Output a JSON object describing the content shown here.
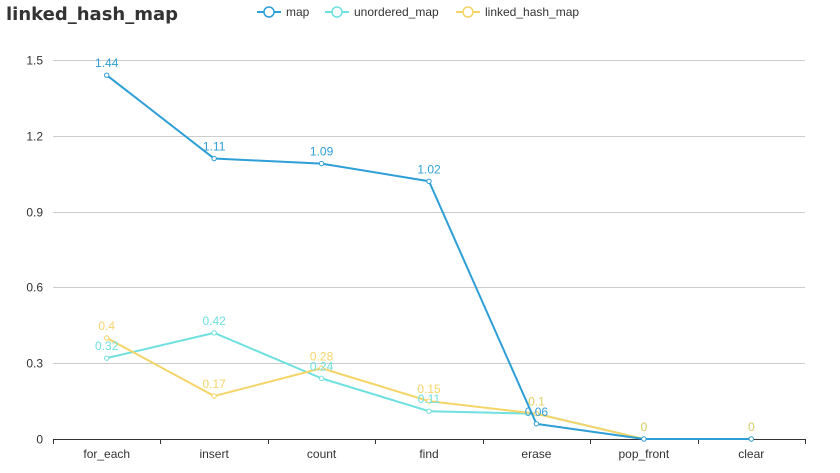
{
  "chart_data": {
    "type": "line",
    "title": "linked_hash_map",
    "xlabel": "",
    "ylabel": "",
    "categories": [
      "for_each",
      "insert",
      "count",
      "find",
      "erase",
      "pop_front",
      "clear"
    ],
    "ylim": [
      0,
      1.5
    ],
    "yticks": [
      0,
      0.3,
      0.6,
      0.9,
      1.2,
      1.5
    ],
    "ytick_labels": [
      "0",
      "0.3",
      "0.6",
      "0.9",
      "1.2",
      "1.5"
    ],
    "grid": true,
    "legend_position": "top-center",
    "series": [
      {
        "name": "map",
        "color": "#2e9fd6",
        "values": [
          1.44,
          1.11,
          1.09,
          1.02,
          0.06,
          0,
          0
        ],
        "labels": [
          "1.44",
          "1.11",
          "1.09",
          "1.02",
          "0.06",
          "0",
          "0"
        ]
      },
      {
        "name": "unordered_map",
        "color": "#6ee0e0",
        "values": [
          0.32,
          0.42,
          0.24,
          0.11,
          0.1,
          0,
          0
        ],
        "labels": [
          "0.32",
          "0.42",
          "0.24",
          "0.11",
          "0.1",
          "0",
          "0"
        ]
      },
      {
        "name": "linked_hash_map",
        "color": "#f5d468",
        "values": [
          0.4,
          0.17,
          0.28,
          0.15,
          0.1,
          0,
          0
        ],
        "labels": [
          "0.4",
          "0.17",
          "0.28",
          "0.15",
          "0.1",
          "0",
          "0"
        ]
      }
    ]
  }
}
